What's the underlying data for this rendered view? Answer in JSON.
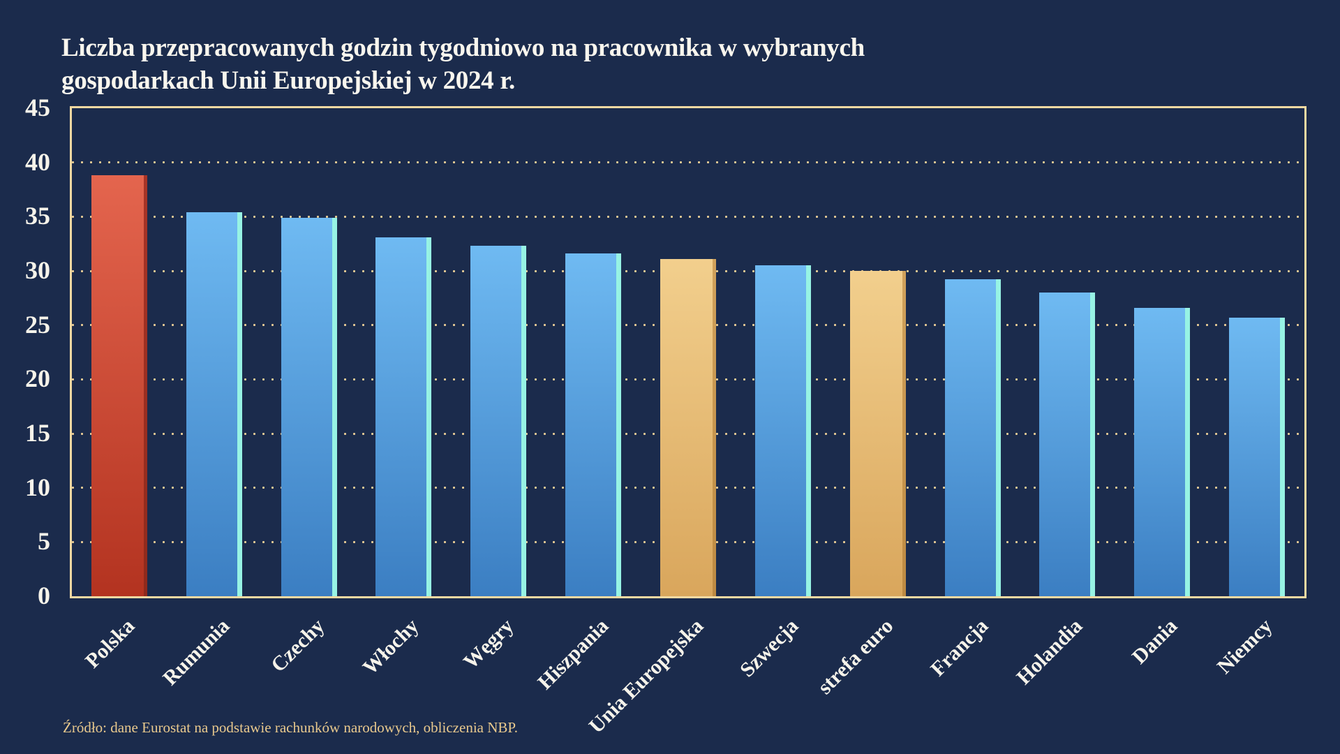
{
  "page": {
    "background_color": "#1b2b4c"
  },
  "title": {
    "line1": "Liczba przepracowanych godzin tygodniowo na pracownika w wybranych",
    "line2": "gospodarkach Unii Europejskiej w 2024 r."
  },
  "source": {
    "text": "Źródło: dane Eurostat na podstawie rachunków narodowych, obliczenia NBP."
  },
  "chart_data": {
    "type": "bar",
    "title": "Liczba przepracowanych godzin tygodniowo na pracownika w wybranych gospodarkach Unii Europejskiej w 2024 r.",
    "categories": [
      "Polska",
      "Rumunia",
      "Czechy",
      "Włochy",
      "Węgry",
      "Hiszpania",
      "Unia Europejska",
      "Szwecja",
      "strefa euro",
      "Francja",
      "Holandia",
      "Dania",
      "Niemcy"
    ],
    "values": [
      38.8,
      35.4,
      34.9,
      33.1,
      32.3,
      31.6,
      31.1,
      30.5,
      30.0,
      29.2,
      28.0,
      26.6,
      25.7
    ],
    "bar_types": [
      "poland",
      "country",
      "country",
      "country",
      "country",
      "country",
      "aggregate",
      "country",
      "aggregate",
      "country",
      "country",
      "country",
      "country"
    ],
    "xlabel": "",
    "ylabel": "",
    "ylim": [
      0,
      45
    ],
    "yticks": [
      0,
      5,
      10,
      15,
      20,
      25,
      30,
      35,
      40,
      45
    ],
    "grid": "horizontal-dotted",
    "legend": "none",
    "colors": {
      "poland_bar": "#cf4a35",
      "country_bar": "#5ba7e0",
      "country_bar_edge": "#97f3e4",
      "aggregate_bar": "#e6bf76",
      "grid_dots": "#eccf97",
      "frame": "#f3d9a2",
      "text": "#f6f3ea"
    }
  }
}
